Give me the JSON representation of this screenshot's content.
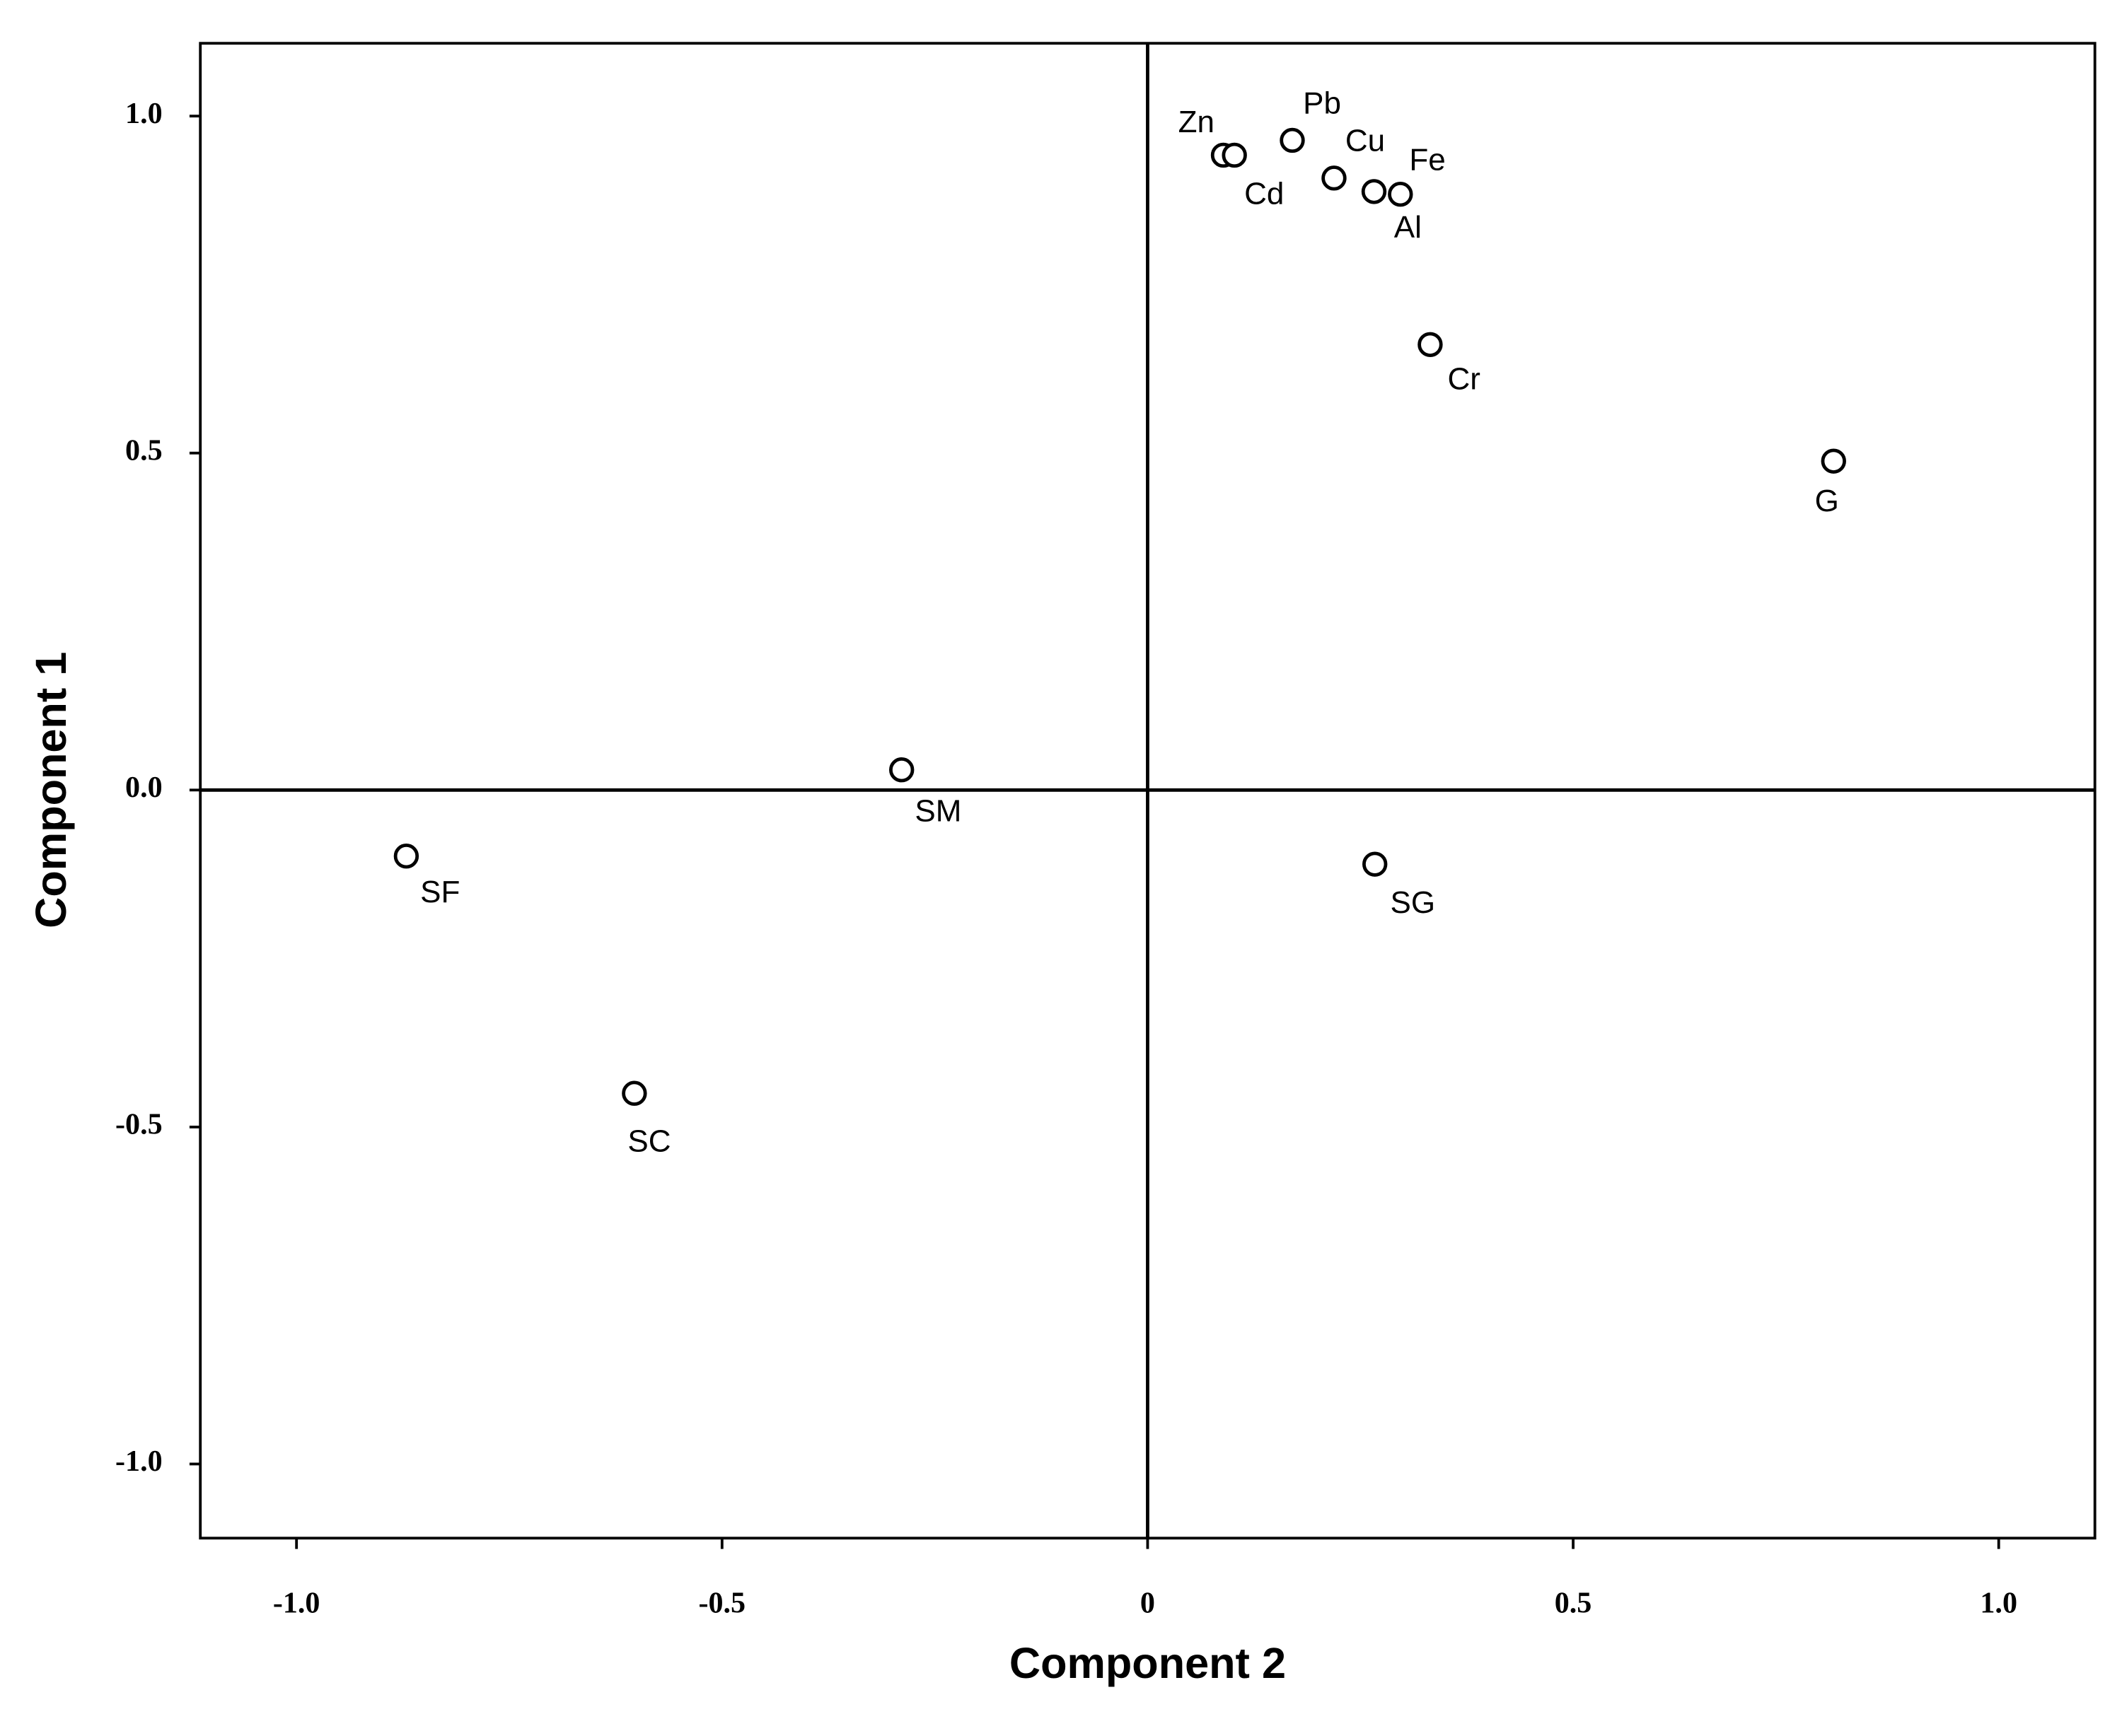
{
  "chart_data": {
    "type": "scatter",
    "x_label": "Component 2",
    "y_label": "Component 1",
    "labels": [
      "Zn",
      "Cd",
      "Pb",
      "Cu",
      "Al",
      "Fe",
      "Cr",
      "G",
      "SM",
      "SF",
      "SC",
      "SG"
    ],
    "x": [
      0.089,
      0.102,
      0.17,
      0.219,
      0.266,
      0.297,
      0.332,
      0.806,
      -0.289,
      -0.871,
      -0.603,
      0.267
    ],
    "values": [
      0.942,
      0.942,
      0.964,
      0.908,
      0.888,
      0.884,
      0.661,
      0.488,
      0.03,
      -0.098,
      -0.45,
      -0.11
    ],
    "color": "#000000",
    "xlim": [
      -1.113,
      1.113
    ],
    "ylim": [
      -1.11,
      1.108
    ],
    "xticks": [
      {
        "value": -1.0,
        "label": "-1.0"
      },
      {
        "value": -0.5,
        "label": "-0.5"
      },
      0,
      0.5,
      {
        "value": 1.0,
        "label": "1.0"
      }
    ],
    "yticks": [
      {
        "value": 1.0,
        "label": "1.0"
      },
      0.5,
      {
        "value": 0.0,
        "label": "0.0"
      },
      {
        "value": -0.5,
        "label": "-0.5"
      },
      {
        "value": -1.0,
        "label": "-1.0"
      }
    ],
    "zero_lines": true
  }
}
